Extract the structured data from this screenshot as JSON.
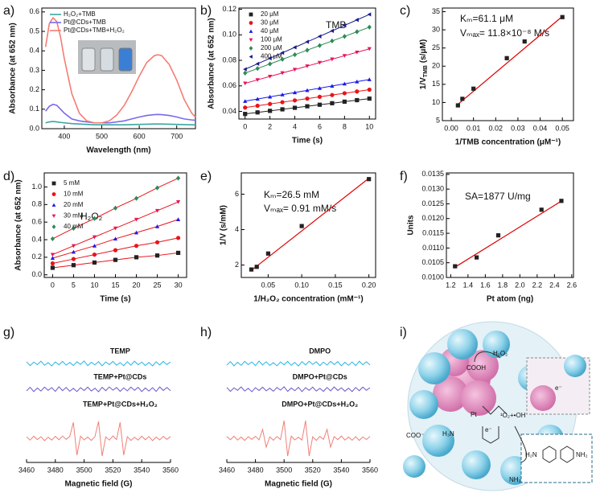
{
  "chart_data": [
    {
      "type": "line",
      "label": "a)",
      "xlabel": "Wavelength (nm)",
      "ylabel": "Absorbance (at 652 nm)",
      "x": [
        350,
        360,
        370,
        380,
        390,
        400,
        420,
        440,
        460,
        480,
        500,
        520,
        540,
        560,
        580,
        600,
        620,
        640,
        650,
        660,
        680,
        700,
        720,
        740,
        750
      ],
      "series": [
        {
          "name": "H₂O₂+TMB",
          "color": "#3aa6a0",
          "values": [
            0.03,
            0.035,
            0.037,
            0.035,
            0.032,
            0.03,
            0.026,
            0.024,
            0.022,
            0.02,
            0.02,
            0.02,
            0.02,
            0.02,
            0.021,
            0.022,
            0.023,
            0.024,
            0.024,
            0.024,
            0.023,
            0.022,
            0.021,
            0.02,
            0.02
          ]
        },
        {
          "name": "Pt@CDs+TMB",
          "color": "#7b68ee",
          "values": [
            0.09,
            0.115,
            0.125,
            0.12,
            0.1,
            0.08,
            0.05,
            0.04,
            0.035,
            0.03,
            0.03,
            0.03,
            0.035,
            0.04,
            0.05,
            0.06,
            0.068,
            0.072,
            0.073,
            0.072,
            0.068,
            0.06,
            0.05,
            0.045,
            0.043
          ]
        },
        {
          "name": "Pt@CDs+TMB+H₂O₂",
          "color": "#f47c73",
          "values": [
            0.42,
            0.54,
            0.57,
            0.55,
            0.47,
            0.36,
            0.18,
            0.08,
            0.04,
            0.03,
            0.03,
            0.04,
            0.07,
            0.12,
            0.19,
            0.27,
            0.34,
            0.375,
            0.38,
            0.375,
            0.33,
            0.25,
            0.15,
            0.08,
            0.06
          ]
        }
      ],
      "xlim": [
        340,
        750
      ],
      "xticks": [
        400,
        500,
        600,
        700
      ],
      "ylim": [
        0,
        0.62
      ],
      "yticks": [
        {
          "value": 0,
          "label": "0.0"
        },
        0.1,
        0.2,
        0.3,
        0.4,
        0.5,
        0.6
      ],
      "legend": "upper left"
    },
    {
      "type": "scatter",
      "label": "b)",
      "xlabel": "Time (s)",
      "ylabel": "Absorbance (at 652 nm)",
      "annotations": [
        "TMB"
      ],
      "connect": true,
      "x": [
        0,
        1,
        2,
        3,
        4,
        5,
        6,
        7,
        8,
        9,
        10
      ],
      "series": [
        {
          "name": "20 μM",
          "color": "#222222",
          "marker": "square",
          "values": [
            0.038,
            0.0392,
            0.0404,
            0.0416,
            0.0428,
            0.044,
            0.0452,
            0.0464,
            0.0476,
            0.0488,
            0.05
          ]
        },
        {
          "name": "30 μM",
          "color": "#e8141a",
          "marker": "circle",
          "values": [
            0.043,
            0.0444,
            0.0458,
            0.0472,
            0.0486,
            0.05,
            0.0514,
            0.0528,
            0.0542,
            0.0556,
            0.057
          ]
        },
        {
          "name": "40 μM",
          "color": "#1a1ae8",
          "marker": "triangle-up",
          "values": [
            0.048,
            0.0497,
            0.0514,
            0.0531,
            0.0548,
            0.0565,
            0.0582,
            0.0599,
            0.0616,
            0.0633,
            0.065
          ]
        },
        {
          "name": "100 μM",
          "color": "#e8145a",
          "marker": "triangle-down",
          "values": [
            0.062,
            0.0647,
            0.0674,
            0.0701,
            0.0728,
            0.0755,
            0.0782,
            0.0809,
            0.0836,
            0.0863,
            0.089
          ]
        },
        {
          "name": "200 μM",
          "color": "#2e8b57",
          "marker": "diamond",
          "values": [
            0.07,
            0.0736,
            0.0772,
            0.0808,
            0.0844,
            0.088,
            0.0916,
            0.0952,
            0.0988,
            0.1024,
            0.106
          ]
        },
        {
          "name": "400 μM",
          "color": "#1a1a8c",
          "marker": "triangle-left",
          "values": [
            0.073,
            0.0773,
            0.0816,
            0.0859,
            0.0902,
            0.0945,
            0.0988,
            0.1031,
            0.1074,
            0.1117,
            0.116
          ]
        }
      ],
      "xlim": [
        -0.5,
        10.5
      ],
      "xticks": [
        0,
        2,
        4,
        6,
        8,
        10
      ],
      "ylim": [
        0.034,
        0.121
      ],
      "yticks": [
        0.04,
        0.06,
        0.08,
        {
          "value": 0.1,
          "label": "0.10"
        },
        0.12
      ],
      "legend": "upper left"
    },
    {
      "type": "scatter",
      "label": "c)",
      "xlabel": "1/TMB concentration (μM⁻¹)",
      "ylabel": [
        "1/V",
        "TMB",
        " (s/μM)"
      ],
      "annotations": [
        "Kₘ=61.1 μM",
        "Vₘₐₓ= 11.8×10⁻⁸ M/s"
      ],
      "x": [
        0.003,
        0.005,
        0.01,
        0.025,
        0.033,
        0.05
      ],
      "series": [
        {
          "color": "#222222",
          "marker": "square",
          "values": [
            9.2,
            11,
            13.8,
            22.2,
            26.8,
            33.5
          ]
        }
      ],
      "fit": {
        "color": "#e00000",
        "x": [
          0.003,
          0.05
        ],
        "values": [
          9.5,
          33.7
        ]
      },
      "xlim": [
        -0.004,
        0.055
      ],
      "xticks": [
        {
          "value": 0,
          "label": "0.00"
        },
        0.01,
        0.02,
        0.03,
        0.04,
        0.05
      ],
      "ylim": [
        5,
        36
      ],
      "yticks": [
        5,
        10,
        15,
        20,
        25,
        30,
        35
      ]
    },
    {
      "type": "scatter",
      "label": "d)",
      "xlabel": "Time (s)",
      "ylabel": "Absorbance (at 652 nm)",
      "annotations": [
        "H₂O₂"
      ],
      "connect": true,
      "connect_color": "#e8141a",
      "x": [
        0,
        5,
        10,
        15,
        20,
        25,
        30
      ],
      "series": [
        {
          "name": "5 mM",
          "color": "#222222",
          "marker": "square",
          "values": [
            0.08,
            0.11,
            0.14,
            0.17,
            0.2,
            0.22,
            0.25
          ]
        },
        {
          "name": "10 mM",
          "color": "#e8141a",
          "marker": "circle",
          "values": [
            0.13,
            0.18,
            0.23,
            0.28,
            0.33,
            0.37,
            0.42
          ]
        },
        {
          "name": "20 mM",
          "color": "#1a1ae8",
          "marker": "triangle-up",
          "values": [
            0.19,
            0.26,
            0.33,
            0.41,
            0.48,
            0.55,
            0.63
          ]
        },
        {
          "name": "30 mM",
          "color": "#e8145a",
          "marker": "triangle-down",
          "values": [
            0.23,
            0.33,
            0.43,
            0.53,
            0.63,
            0.73,
            0.83
          ]
        },
        {
          "name": "40 mM",
          "color": "#2e8b57",
          "marker": "diamond",
          "values": [
            0.41,
            0.53,
            0.64,
            0.76,
            0.87,
            0.99,
            1.1
          ]
        }
      ],
      "xlim": [
        -2,
        32
      ],
      "xticks": [
        0,
        5,
        10,
        15,
        20,
        25,
        30
      ],
      "ylim": [
        -0.03,
        1.16
      ],
      "yticks": [
        {
          "value": 0,
          "label": "0.0"
        },
        0.2,
        0.4,
        0.6,
        0.8,
        {
          "value": 1,
          "label": "1.0"
        }
      ],
      "legend": "upper left"
    },
    {
      "type": "scatter",
      "label": "e)",
      "xlabel": "1/H₂O₂ concentration (mM⁻¹)",
      "ylabel": "1/V (s/mM)",
      "annotations": [
        "Kₘ=26.5 mM",
        "Vₘₐₓ= 0.91 mM/s"
      ],
      "x": [
        0.025,
        0.033,
        0.05,
        0.1,
        0.2
      ],
      "series": [
        {
          "color": "#222222",
          "marker": "square",
          "values": [
            1.75,
            1.9,
            2.65,
            4.2,
            6.85
          ]
        }
      ],
      "fit": {
        "color": "#e00000",
        "x": [
          0.025,
          0.2
        ],
        "values": [
          1.7,
          6.9
        ]
      },
      "xlim": [
        0.01,
        0.21
      ],
      "xticks": [
        0.05,
        {
          "value": 0.1,
          "label": "0.10"
        },
        0.15,
        {
          "value": 0.2,
          "label": "0.20"
        }
      ],
      "ylim": [
        1.3,
        7.2
      ],
      "yticks": [
        2,
        4,
        6
      ]
    },
    {
      "type": "scatter",
      "label": "f)",
      "xlabel": "Pt atom (ng)",
      "ylabel": "Units",
      "annotations": [
        "SA=1877 U/mg"
      ],
      "x": [
        1.25,
        1.5,
        1.75,
        2.25,
        2.48
      ],
      "series": [
        {
          "color": "#222222",
          "marker": "square",
          "values": [
            0.01038,
            0.01068,
            0.01143,
            0.0123,
            0.0126
          ]
        }
      ],
      "fit": {
        "color": "#e00000",
        "x": [
          1.25,
          2.5
        ],
        "values": [
          0.01035,
          0.01263
        ]
      },
      "xlim": [
        1.15,
        2.62
      ],
      "xticks": [
        1.2,
        1.4,
        1.6,
        1.8,
        {
          "value": 2,
          "label": "2.0"
        },
        2.2,
        2.4,
        2.6
      ],
      "ylim": [
        0.01,
        0.01355
      ],
      "yticks": [
        {
          "value": 0.01,
          "label": "0.0100"
        },
        0.0105,
        {
          "value": 0.011,
          "label": "0.0110"
        },
        0.0115,
        {
          "value": 0.012,
          "label": "0.0120"
        },
        0.0125,
        {
          "value": 0.013,
          "label": "0.0130"
        },
        0.0135
      ]
    },
    {
      "type": "spectrum",
      "label": "g)",
      "xlabel": "Magnetic field (G)",
      "x": [
        3460,
        3462.5,
        3465,
        3467.5,
        3470,
        3472.5,
        3475,
        3477.5,
        3480,
        3482.5,
        3485,
        3487.5,
        3490,
        3492.5,
        3495,
        3497.5,
        3500,
        3502.5,
        3505,
        3507.5,
        3510,
        3512.5,
        3515,
        3517.5,
        3520,
        3522.5,
        3525,
        3527.5,
        3530,
        3532.5,
        3535,
        3537.5,
        3540,
        3542.5,
        3545,
        3547.5,
        3550,
        3552.5,
        3555,
        3557.5,
        3560
      ],
      "series": [
        {
          "name": "TEMP",
          "color": "#29b5e8",
          "values": [
            0.1,
            -0.12,
            0.08,
            -0.06,
            0.13,
            -0.1,
            0.05,
            -0.14,
            0.09,
            -0.07,
            0.12,
            -0.09,
            0.06,
            -0.11,
            0.1,
            -0.05,
            0.14,
            -0.12,
            0.07,
            -0.08,
            0.11,
            -0.13,
            0.09,
            -0.06,
            0.12,
            -0.1,
            0.05,
            -0.12,
            0.1,
            -0.09,
            0.13,
            -0.07,
            0.08,
            -0.11,
            0.06,
            -0.13,
            0.1,
            -0.08,
            0.12,
            -0.06,
            0.09
          ]
        },
        {
          "name": "TEMP+Pt@CDs",
          "color": "#6a5acd",
          "values": [
            -0.09,
            0.11,
            -0.13,
            0.07,
            -0.1,
            0.12,
            -0.06,
            0.09,
            -0.12,
            0.14,
            -0.08,
            0.1,
            -0.11,
            0.05,
            -0.13,
            0.09,
            -0.07,
            0.12,
            -0.1,
            0.06,
            -0.14,
            0.11,
            -0.08,
            0.13,
            -0.05,
            0.1,
            -0.12,
            0.08,
            -0.09,
            0.12,
            -0.06,
            0.11,
            -0.13,
            0.07,
            -0.1,
            0.09,
            -0.12,
            0.13,
            -0.07,
            0.1,
            -0.08
          ]
        },
        {
          "name": "TEMP+Pt@CDs+H₂O₂",
          "color": "#f08078",
          "values": [
            0.08,
            -0.1,
            0.12,
            -0.07,
            0.09,
            -0.13,
            0.06,
            -0.1,
            0.11,
            -0.08,
            0.13,
            -0.06,
            0.1,
            0.9,
            -0.95,
            0.12,
            -0.09,
            0.07,
            -0.12,
            0.1,
            0.95,
            -1,
            0.08,
            -0.1,
            0.13,
            -0.07,
            0.9,
            -0.95,
            0.09,
            -0.12,
            0.06,
            -0.1,
            0.12,
            -0.08,
            0.1,
            -0.13,
            0.07,
            -0.09,
            0.11,
            -0.06,
            0.1
          ]
        }
      ],
      "xlim": [
        3460,
        3560
      ],
      "xticks": [
        3460,
        3480,
        3500,
        3520,
        3540,
        3560
      ]
    },
    {
      "type": "spectrum",
      "label": "h)",
      "xlabel": "Magnetic field (G)",
      "x": [
        3460,
        3462.5,
        3465,
        3467.5,
        3470,
        3472.5,
        3475,
        3477.5,
        3480,
        3482.5,
        3485,
        3487.5,
        3490,
        3492.5,
        3495,
        3497.5,
        3500,
        3502.5,
        3505,
        3507.5,
        3510,
        3512.5,
        3515,
        3517.5,
        3520,
        3522.5,
        3525,
        3527.5,
        3530,
        3532.5,
        3535,
        3537.5,
        3540,
        3542.5,
        3545,
        3547.5,
        3550,
        3552.5,
        3555,
        3557.5,
        3560
      ],
      "series": [
        {
          "name": "DMPO",
          "color": "#29b5e8",
          "values": [
            -0.09,
            0.11,
            -0.13,
            0.07,
            -0.1,
            0.12,
            -0.06,
            0.09,
            -0.12,
            0.14,
            -0.08,
            0.1,
            -0.11,
            0.05,
            -0.13,
            0.09,
            -0.07,
            0.12,
            -0.1,
            0.06,
            -0.14,
            0.11,
            -0.08,
            0.13,
            -0.05,
            0.1,
            -0.12,
            0.08,
            -0.09,
            0.12,
            -0.06,
            0.11,
            -0.13,
            0.07,
            -0.1,
            0.09,
            -0.12,
            0.13,
            -0.07,
            0.1,
            -0.08
          ]
        },
        {
          "name": "DMPO+Pt@CDs",
          "color": "#6a5acd",
          "values": [
            0.1,
            -0.12,
            0.08,
            -0.06,
            0.13,
            -0.1,
            0.05,
            -0.14,
            0.09,
            -0.07,
            0.12,
            -0.09,
            0.06,
            -0.11,
            0.1,
            -0.05,
            0.14,
            -0.12,
            0.07,
            -0.08,
            0.11,
            -0.13,
            0.09,
            -0.06,
            0.12,
            -0.1,
            0.05,
            -0.12,
            0.1,
            -0.09,
            0.13,
            -0.07,
            0.08,
            -0.11,
            0.06,
            -0.13,
            0.1,
            -0.08,
            0.12,
            -0.06,
            0.09
          ]
        },
        {
          "name": "DMPO+Pt@CDs+H₂O₂",
          "color": "#f08078",
          "values": [
            0.1,
            -0.08,
            0.12,
            -0.1,
            0.07,
            -0.12,
            0.09,
            -0.06,
            0.11,
            -0.09,
            0.5,
            -0.5,
            0.08,
            -0.11,
            0.1,
            -0.07,
            1,
            -1,
            0.12,
            -0.09,
            0.06,
            -0.1,
            1,
            -1,
            0.09,
            -0.12,
            0.11,
            -0.06,
            0.5,
            -0.5,
            0.1,
            -0.08,
            0.13,
            -0.1,
            0.07,
            -0.11,
            0.09,
            -0.12,
            0.08,
            -0.07,
            0.1
          ]
        }
      ],
      "xlim": [
        3460,
        3560
      ],
      "xticks": [
        3460,
        3480,
        3500,
        3520,
        3540,
        3560
      ]
    }
  ],
  "diagram": {
    "label": "i)",
    "texts": [
      "H₂O₂",
      "COOH",
      "Pt",
      "¹O₂+•OH",
      "e⁻",
      "COO⁻",
      "H₃N",
      "NH₂",
      "e⁻",
      "H₂N",
      "NH₂"
    ]
  }
}
